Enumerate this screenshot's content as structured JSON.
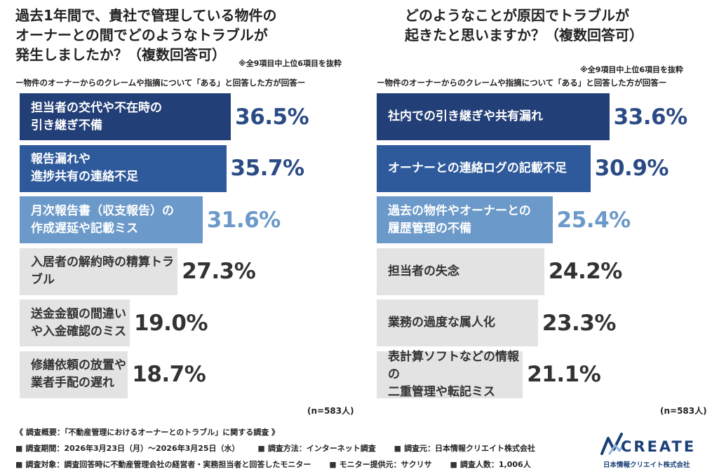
{
  "chart_data": [
    {
      "type": "bar",
      "orientation": "horizontal",
      "title": "過去1年間で、貴社で管理している物件の\nオーナーとの間でどのようなトラブルが\n発生しましたか？（複数回答可）",
      "note": "※全9項目中上位6項目を抜粋",
      "subtitle": "ー物件のオーナーからのクレームや指摘について「ある」と回答した方が回答ー",
      "categories": [
        "担当者の交代や不在時の\n引き継ぎ不備",
        "報告漏れや\n進捗共有の連絡不足",
        "月次報告書（収支報告）の\n作成遅延や記載ミス",
        "入居者の解約時の精算トラブル",
        "送金金額の間違いや入金確認のミス",
        "修繕依頼の放置や業者手配の遅れ"
      ],
      "values": [
        36.5,
        35.7,
        31.6,
        27.3,
        19.0,
        18.7
      ],
      "value_labels": [
        "36.5%",
        "35.7%",
        "31.6%",
        "27.3%",
        "19.0%",
        "18.7%"
      ],
      "n": "(n=583人)",
      "xlim": [
        0,
        40
      ],
      "bar_colors": [
        "#233f77",
        "#2e5a9c",
        "#6b99c9",
        "#e3e3e3",
        "#e3e3e3",
        "#e3e3e3"
      ],
      "label_colors": [
        "#ffffff",
        "#ffffff",
        "#ffffff",
        "#333333",
        "#333333",
        "#333333"
      ],
      "value_colors": [
        "#2b4b85",
        "#2b4b85",
        "#6b99c9",
        "#333333",
        "#333333",
        "#333333"
      ]
    },
    {
      "type": "bar",
      "orientation": "horizontal",
      "title": "どのようなことが原因でトラブルが\n起きたと思いますか？（複数回答可）",
      "note": "※全9項目中上位6項目を抜粋",
      "subtitle": "ー物件のオーナーからのクレームや指摘について「ある」と回答した方が回答ー",
      "categories": [
        "社内での引き継ぎや共有漏れ",
        "オーナーとの連絡ログの記載不足",
        "過去の物件やオーナーとの\n履歴管理の不備",
        "担当者の失念",
        "業務の過度な属人化",
        "表計算ソフトなどの情報の\n二重管理や転記ミス"
      ],
      "values": [
        33.6,
        30.9,
        25.4,
        24.2,
        23.3,
        21.1
      ],
      "value_labels": [
        "33.6%",
        "30.9%",
        "25.4%",
        "24.2%",
        "23.3%",
        "21.1%"
      ],
      "n": "(n=583人)",
      "xlim": [
        0,
        38
      ],
      "bar_colors": [
        "#233f77",
        "#2e5a9c",
        "#6b99c9",
        "#e3e3e3",
        "#e3e3e3",
        "#e3e3e3"
      ],
      "label_colors": [
        "#ffffff",
        "#ffffff",
        "#ffffff",
        "#333333",
        "#333333",
        "#333333"
      ],
      "value_colors": [
        "#2b4b85",
        "#2b4b85",
        "#6b99c9",
        "#333333",
        "#333333",
        "#333333"
      ]
    }
  ],
  "footer": {
    "overview": "《 調査概要：「不動産管理におけるオーナーとのトラブル」に関する調査 》",
    "period": "調査期間：2026年3月23日（月）〜2026年3月25日（水）",
    "method": "調査方法：インターネット調査",
    "organizer": "調査元：日本情報クリエイト株式会社",
    "target": "調査対象：調査回答時に不動産管理会社の経営者・実務担当者と回答したモニター",
    "provider": "モニター提供元：サクリサ",
    "count": "調査人数：1,006人"
  },
  "logo": {
    "word": "CREATE",
    "company": "日本情報クリエイト株式会社",
    "color": "#1a3f77"
  }
}
